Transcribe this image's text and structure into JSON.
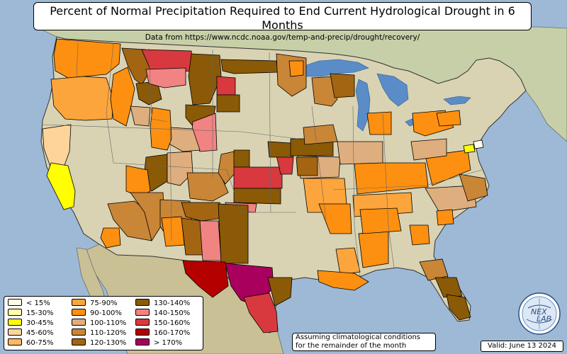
{
  "title": "Percent of Normal Precipitation Required to End Current Hydrological Drought in 6 Months",
  "subtitle": "Data from https://www.ncdc.noaa.gov/temp-and-precip/drought/recovery/",
  "legend": [
    {
      "label": "< 15%",
      "color": "#ffffe6"
    },
    {
      "label": "15-30%",
      "color": "#ffffa8"
    },
    {
      "label": "30-45%",
      "color": "#ffff00"
    },
    {
      "label": "45-60%",
      "color": "#ffd49a"
    },
    {
      "label": "60-75%",
      "color": "#fdb863"
    },
    {
      "label": "75-90%",
      "color": "#fca53c"
    },
    {
      "label": "90-100%",
      "color": "#fd9010"
    },
    {
      "label": "100-110%",
      "color": "#dfae7e"
    },
    {
      "label": "110-120%",
      "color": "#c98637"
    },
    {
      "label": "120-130%",
      "color": "#a36511"
    },
    {
      "label": "130-140%",
      "color": "#8a5a07"
    },
    {
      "label": "140-150%",
      "color": "#f28383"
    },
    {
      "label": "150-160%",
      "color": "#d8393f"
    },
    {
      "label": "160-170%",
      "color": "#b50000"
    },
    {
      "label": "> 170%",
      "color": "#a8005c"
    }
  ],
  "note": {
    "line1": "Assuming climatological conditions",
    "line2": "for the remainder of the month"
  },
  "valid": "Valid: June 13 2024",
  "logo": {
    "line1": "NEX",
    "line2": "LAB"
  },
  "colors": {
    "ocean": "#9db9d6",
    "land_canada": "#c7cfa8",
    "land_us": "#d9d3b3",
    "land_mexico": "#c9c095",
    "lakes": "#5a8cc8",
    "border": "#222222"
  }
}
